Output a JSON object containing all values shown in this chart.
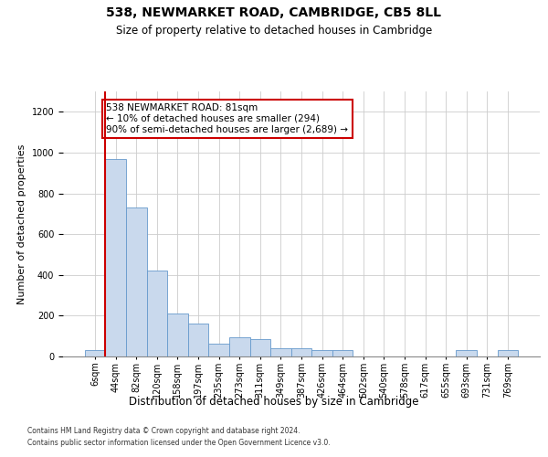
{
  "title1": "538, NEWMARKET ROAD, CAMBRIDGE, CB5 8LL",
  "title2": "Size of property relative to detached houses in Cambridge",
  "xlabel": "Distribution of detached houses by size in Cambridge",
  "ylabel": "Number of detached properties",
  "footnote1": "Contains HM Land Registry data © Crown copyright and database right 2024.",
  "footnote2": "Contains public sector information licensed under the Open Government Licence v3.0.",
  "bin_labels": [
    "6sqm",
    "44sqm",
    "82sqm",
    "120sqm",
    "158sqm",
    "197sqm",
    "235sqm",
    "273sqm",
    "311sqm",
    "349sqm",
    "387sqm",
    "426sqm",
    "464sqm",
    "502sqm",
    "540sqm",
    "578sqm",
    "617sqm",
    "655sqm",
    "693sqm",
    "731sqm",
    "769sqm"
  ],
  "bar_heights": [
    30,
    970,
    730,
    420,
    210,
    160,
    65,
    95,
    85,
    40,
    40,
    30,
    30,
    0,
    0,
    0,
    0,
    0,
    30,
    0,
    30
  ],
  "bar_color": "#c9d9ed",
  "bar_edge_color": "#6699cc",
  "annotation_text": "538 NEWMARKET ROAD: 81sqm\n← 10% of detached houses are smaller (294)\n90% of semi-detached houses are larger (2,689) →",
  "annotation_box_facecolor": "#ffffff",
  "annotation_box_edgecolor": "#cc0000",
  "vline_color": "#cc0000",
  "vline_x": 0.5,
  "ylim": [
    0,
    1300
  ],
  "yticks": [
    0,
    200,
    400,
    600,
    800,
    1000,
    1200
  ],
  "background_color": "#ffffff",
  "grid_color": "#cccccc",
  "title1_fontsize": 10,
  "title2_fontsize": 8.5,
  "ylabel_fontsize": 8,
  "xlabel_fontsize": 8.5,
  "tick_fontsize": 7,
  "footnote_fontsize": 5.5,
  "annotation_fontsize": 7.5
}
